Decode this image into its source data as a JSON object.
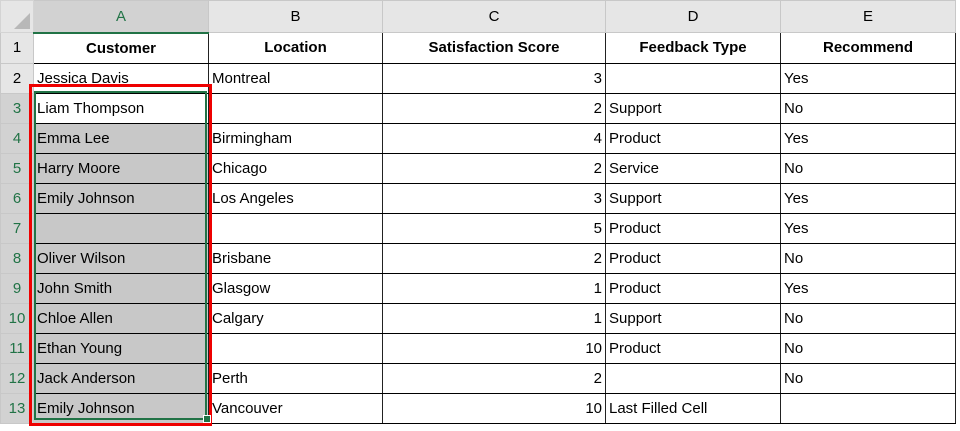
{
  "columns": [
    "A",
    "B",
    "C",
    "D",
    "E"
  ],
  "headers": [
    "Customer",
    "Location",
    "Satisfaction Score",
    "Feedback Type",
    "Recommend"
  ],
  "rows": [
    [
      "Jessica Davis",
      "Montreal",
      "3",
      "",
      "Yes"
    ],
    [
      "Liam Thompson",
      "",
      "2",
      "Support",
      "No"
    ],
    [
      "Emma Lee",
      "Birmingham",
      "4",
      "Product",
      "Yes"
    ],
    [
      "Harry Moore",
      "Chicago",
      "2",
      "Service",
      "No"
    ],
    [
      "Emily Johnson",
      "Los Angeles",
      "3",
      "Support",
      "Yes"
    ],
    [
      "",
      "",
      "5",
      "Product",
      "Yes"
    ],
    [
      "Oliver Wilson",
      "Brisbane",
      "2",
      "Product",
      "No"
    ],
    [
      "John Smith",
      "Glasgow",
      "1",
      "Product",
      "Yes"
    ],
    [
      "Chloe Allen",
      "Calgary",
      "1",
      "Support",
      "No"
    ],
    [
      "Ethan Young",
      "",
      "10",
      "Product",
      "No"
    ],
    [
      "Jack Anderson",
      "Perth",
      "2",
      "",
      "No"
    ],
    [
      "Emily Johnson",
      "Vancouver",
      "10",
      "Last Filled Cell",
      ""
    ]
  ],
  "selection": {
    "range": "A3:A13",
    "active_cell": "A3",
    "highlight_color": "#e00000",
    "accent": "#217346"
  }
}
